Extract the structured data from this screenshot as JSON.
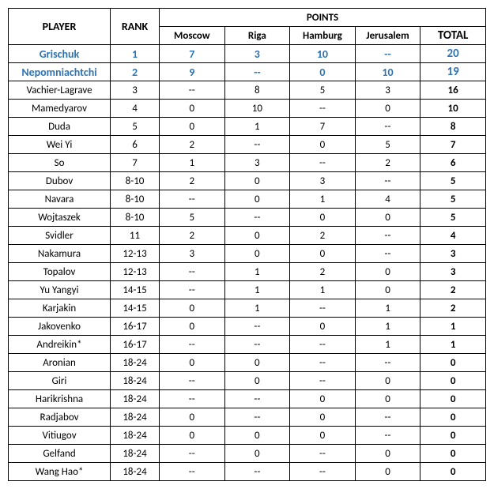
{
  "headers": {
    "player": "PLAYER",
    "rank": "RANK",
    "points_group": "POINTS",
    "cities": [
      "Moscow",
      "Riga",
      "Hamburg",
      "Jerusalem"
    ],
    "total": "TOTAL"
  },
  "colors": {
    "highlight_text": "#2e74b5",
    "border": "#000000",
    "background": "#ffffff"
  },
  "rows": [
    {
      "player": "Grischuk",
      "rank": "1",
      "moscow": "7",
      "riga": "3",
      "hamburg": "10",
      "jerusalem": "--",
      "total": "20",
      "highlight": true
    },
    {
      "player": "Nepomniachtchi",
      "rank": "2",
      "moscow": "9",
      "riga": "--",
      "hamburg": "0",
      "jerusalem": "10",
      "total": "19",
      "highlight": true
    },
    {
      "player": "Vachier-Lagrave",
      "rank": "3",
      "moscow": "--",
      "riga": "8",
      "hamburg": "5",
      "jerusalem": "3",
      "total": "16",
      "highlight": false
    },
    {
      "player": "Mamedyarov",
      "rank": "4",
      "moscow": "0",
      "riga": "10",
      "hamburg": "--",
      "jerusalem": "0",
      "total": "10",
      "highlight": false
    },
    {
      "player": "Duda",
      "rank": "5",
      "moscow": "0",
      "riga": "1",
      "hamburg": "7",
      "jerusalem": "--",
      "total": "8",
      "highlight": false
    },
    {
      "player": "Wei Yi",
      "rank": "6",
      "moscow": "2",
      "riga": "--",
      "hamburg": "0",
      "jerusalem": "5",
      "total": "7",
      "highlight": false
    },
    {
      "player": "So",
      "rank": "7",
      "moscow": "1",
      "riga": "3",
      "hamburg": "--",
      "jerusalem": "2",
      "total": "6",
      "highlight": false
    },
    {
      "player": "Dubov",
      "rank": "8-10",
      "moscow": "2",
      "riga": "0",
      "hamburg": "3",
      "jerusalem": "--",
      "total": "5",
      "highlight": false
    },
    {
      "player": "Navara",
      "rank": "8-10",
      "moscow": "--",
      "riga": "0",
      "hamburg": "1",
      "jerusalem": "4",
      "total": "5",
      "highlight": false
    },
    {
      "player": "Wojtaszek",
      "rank": "8-10",
      "moscow": "5",
      "riga": "--",
      "hamburg": "0",
      "jerusalem": "0",
      "total": "5",
      "highlight": false
    },
    {
      "player": "Svidler",
      "rank": "11",
      "moscow": "2",
      "riga": "0",
      "hamburg": "2",
      "jerusalem": "--",
      "total": "4",
      "highlight": false
    },
    {
      "player": "Nakamura",
      "rank": "12-13",
      "moscow": "3",
      "riga": "0",
      "hamburg": "0",
      "jerusalem": "--",
      "total": "3",
      "highlight": false
    },
    {
      "player": "Topalov",
      "rank": "12-13",
      "moscow": "--",
      "riga": "1",
      "hamburg": "2",
      "jerusalem": "0",
      "total": "3",
      "highlight": false
    },
    {
      "player": "Yu Yangyi",
      "rank": "14-15",
      "moscow": "--",
      "riga": "1",
      "hamburg": "1",
      "jerusalem": "0",
      "total": "2",
      "highlight": false
    },
    {
      "player": "Karjakin",
      "rank": "14-15",
      "moscow": "0",
      "riga": "1",
      "hamburg": "--",
      "jerusalem": "1",
      "total": "2",
      "highlight": false
    },
    {
      "player": "Jakovenko",
      "rank": "16-17",
      "moscow": "0",
      "riga": "--",
      "hamburg": "0",
      "jerusalem": "1",
      "total": "1",
      "highlight": false
    },
    {
      "player": "Andreikin*",
      "rank": "16-17",
      "moscow": "--",
      "riga": "--",
      "hamburg": "--",
      "jerusalem": "1",
      "total": "1",
      "highlight": false
    },
    {
      "player": "Aronian",
      "rank": "18-24",
      "moscow": "0",
      "riga": "0",
      "hamburg": "--",
      "jerusalem": "--",
      "total": "0",
      "highlight": false
    },
    {
      "player": "Giri",
      "rank": "18-24",
      "moscow": "--",
      "riga": "0",
      "hamburg": "--",
      "jerusalem": "0",
      "total": "0",
      "highlight": false
    },
    {
      "player": "Harikrishna",
      "rank": "18-24",
      "moscow": "--",
      "riga": "--",
      "hamburg": "0",
      "jerusalem": "0",
      "total": "0",
      "highlight": false
    },
    {
      "player": "Radjabov",
      "rank": "18-24",
      "moscow": "0",
      "riga": "--",
      "hamburg": "0",
      "jerusalem": "--",
      "total": "0",
      "highlight": false
    },
    {
      "player": "Vitiugov",
      "rank": "18-24",
      "moscow": "0",
      "riga": "0",
      "hamburg": "0",
      "jerusalem": "--",
      "total": "0",
      "highlight": false
    },
    {
      "player": "Gelfand",
      "rank": "18-24",
      "moscow": "--",
      "riga": "0",
      "hamburg": "--",
      "jerusalem": "0",
      "total": "0",
      "highlight": false
    },
    {
      "player": "Wang Hao*",
      "rank": "18-24",
      "moscow": "--",
      "riga": "--",
      "hamburg": "--",
      "jerusalem": "0",
      "total": "0",
      "highlight": false
    }
  ]
}
